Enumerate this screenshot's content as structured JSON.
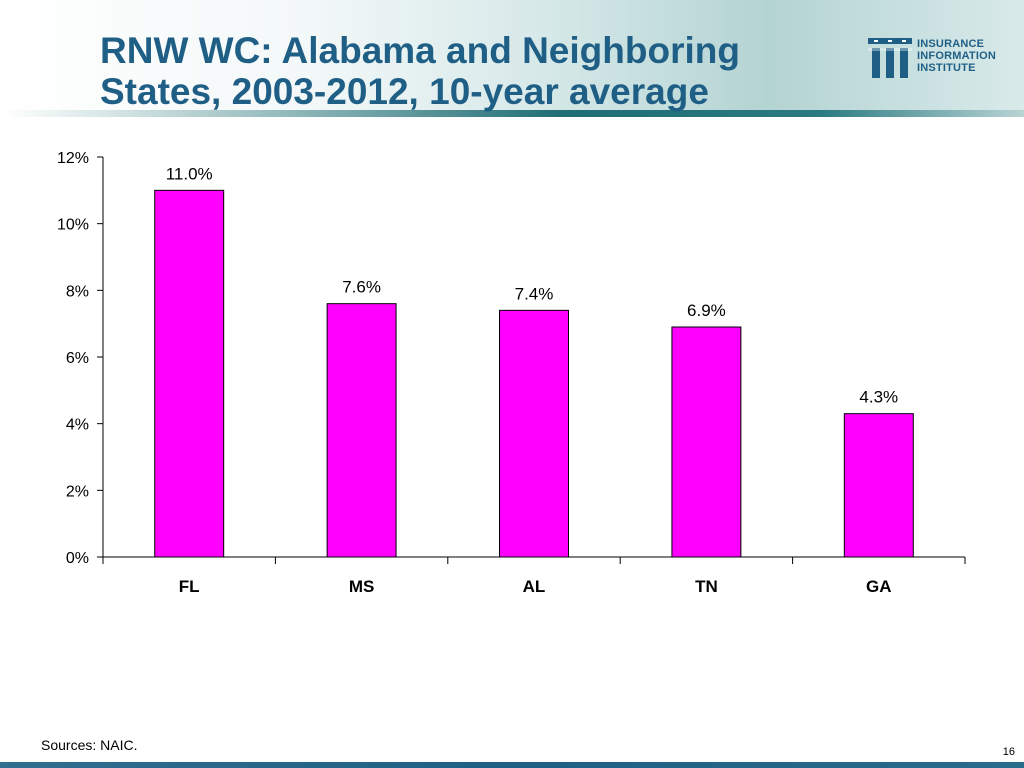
{
  "slide": {
    "title_lines": [
      "RNW WC: Alabama and Neighboring",
      "States, 2003-2012, 10-year average"
    ],
    "logo_lines": [
      "INSURANCE",
      "INFORMATION",
      "INSTITUTE"
    ],
    "sources": "Sources: NAIC.",
    "page_number": "16",
    "colors": {
      "title": "#1f5f86",
      "bar": "#ff00ff",
      "header_rule": "#1f6d75"
    }
  },
  "chart_data": {
    "type": "bar",
    "categories": [
      "FL",
      "MS",
      "AL",
      "TN",
      "GA"
    ],
    "values": [
      11.0,
      7.6,
      7.4,
      6.9,
      4.3
    ],
    "value_labels": [
      "11.0%",
      "7.6%",
      "7.4%",
      "6.9%",
      "4.3%"
    ],
    "y_ticks": [
      0,
      2,
      4,
      6,
      8,
      10,
      12
    ],
    "y_tick_labels": [
      "0%",
      "2%",
      "4%",
      "6%",
      "8%",
      "10%",
      "12%"
    ],
    "ylim": [
      0,
      12
    ],
    "grid": false,
    "legend": "none",
    "title": "",
    "xlabel": "",
    "ylabel": ""
  }
}
